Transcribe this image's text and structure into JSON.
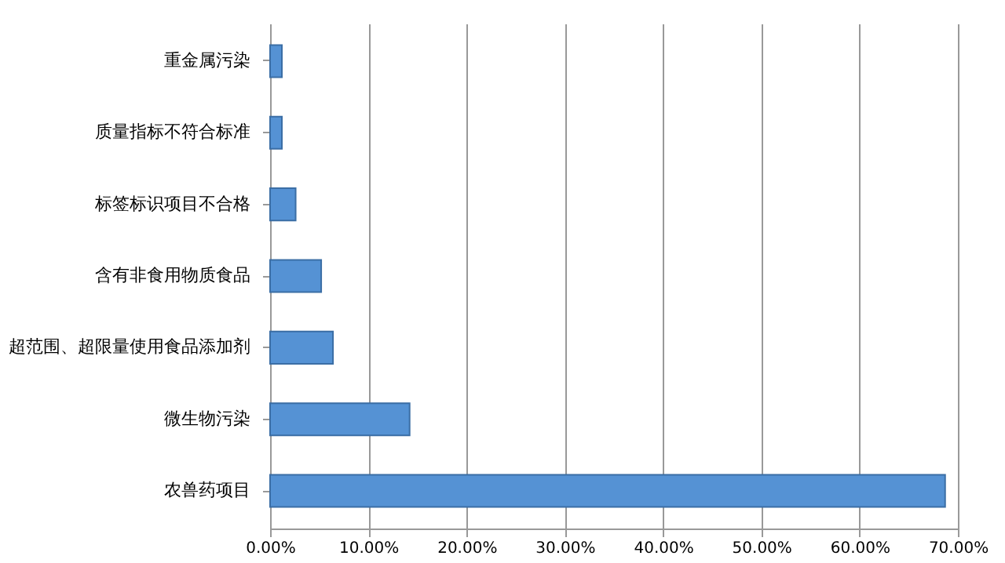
{
  "chart_data": {
    "type": "bar",
    "orientation": "horizontal",
    "categories": [
      "重金属污染",
      "质量指标不符合标准",
      "标签标识项目不合格",
      "含有非食用物质食品",
      "超范围、超限量使用食品添加剂",
      "微生物污染",
      "农兽药项目"
    ],
    "values": [
      1.2,
      1.2,
      2.6,
      5.2,
      6.4,
      14.2,
      68.7
    ],
    "color": "#5592d4",
    "xlim": [
      0,
      70
    ],
    "xticks": [
      {
        "value": 0,
        "label": "0.00%"
      },
      {
        "value": 10,
        "label": "10.00%"
      },
      {
        "value": 20,
        "label": "20.00%"
      },
      {
        "value": 30,
        "label": "30.00%"
      },
      {
        "value": 40,
        "label": "40.00%"
      },
      {
        "value": 50,
        "label": "50.00%"
      },
      {
        "value": 60,
        "label": "60.00%"
      },
      {
        "value": 70,
        "label": "70.00%"
      }
    ],
    "grid": "x"
  }
}
